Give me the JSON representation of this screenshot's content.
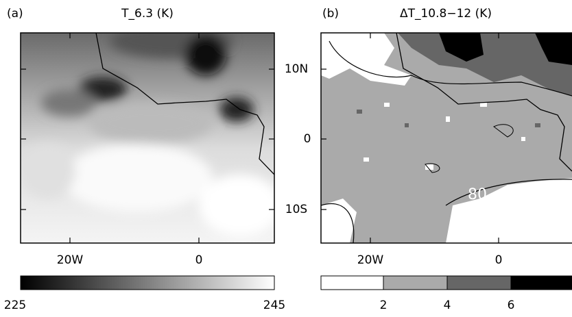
{
  "panels": [
    {
      "label": "(a)",
      "title": "T_6.3 (K)",
      "lon_labels": [
        "20W",
        "0"
      ],
      "colorbar": {
        "labels": [
          225,
          245
        ]
      }
    },
    {
      "label": "(b)",
      "title": "ΔT_10.8−12 (K)",
      "lon_labels": [
        "20W",
        "0"
      ],
      "contour_label": 80,
      "colorbar": {
        "labels": [
          2,
          4,
          6
        ]
      }
    }
  ],
  "lat_labels": [
    "10N",
    "0",
    "10S"
  ]
}
